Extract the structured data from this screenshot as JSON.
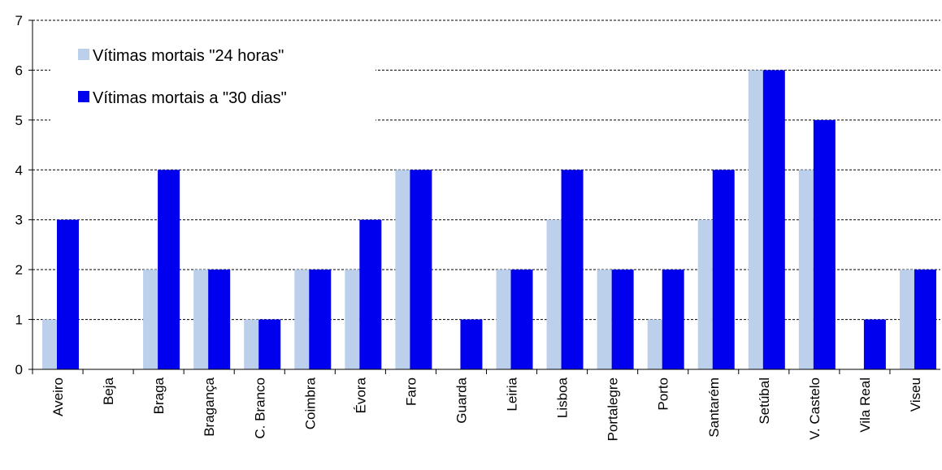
{
  "chart_data": {
    "type": "bar",
    "categories": [
      "Aveiro",
      "Beja",
      "Braga",
      "Bragança",
      "C. Branco",
      "Coimbra",
      "Évora",
      "Faro",
      "Guarda",
      "Leiria",
      "Lisboa",
      "Portalegre",
      "Porto",
      "Santarém",
      "Setúbal",
      "V. Castelo",
      "Vila Real",
      "Viseu"
    ],
    "series": [
      {
        "name": "Vítimas mortais \"24 horas\"",
        "color": "#bcd0ec",
        "values": [
          1,
          0,
          2,
          2,
          1,
          2,
          2,
          4,
          0,
          2,
          3,
          2,
          1,
          3,
          6,
          4,
          0,
          2
        ]
      },
      {
        "name": "Vítimas mortais a \"30 dias\"",
        "color": "#0000ee",
        "values": [
          3,
          0,
          4,
          2,
          1,
          2,
          3,
          4,
          1,
          2,
          4,
          2,
          2,
          4,
          6,
          5,
          1,
          2
        ]
      }
    ],
    "ylim": [
      0,
      7
    ],
    "yticks": [
      0,
      1,
      2,
      3,
      4,
      5,
      6,
      7
    ],
    "grid": true,
    "legend": "top-left"
  }
}
